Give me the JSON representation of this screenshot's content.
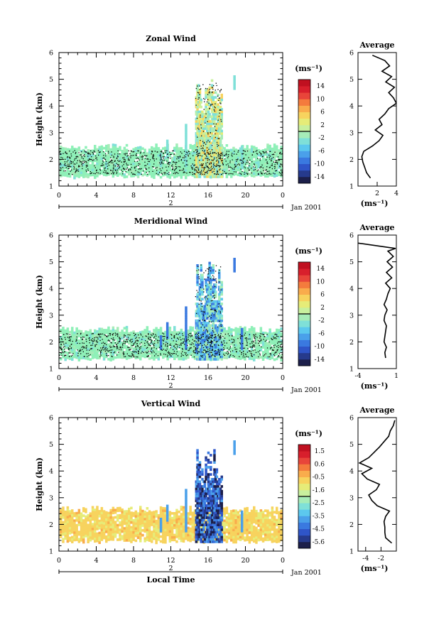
{
  "chart_data": [
    {
      "type": "heatmap",
      "title": "Zonal Wind",
      "ylabel": "Height (km)",
      "ylim": [
        1,
        6
      ],
      "yticks": [
        "1",
        "2",
        "3",
        "4",
        "5",
        "6"
      ],
      "xlim": [
        0,
        24
      ],
      "xticks": [
        "0",
        "4",
        "8",
        "12",
        "16",
        "20",
        "0"
      ],
      "date_axis": {
        "day_label": "2",
        "month_year": "Jan 2001"
      },
      "colorbar": {
        "unit": "(ms⁻¹)",
        "labels": [
          "14",
          "10",
          "6",
          "2",
          "-2",
          "-6",
          "-10",
          "-14"
        ],
        "min": -16,
        "max": 16,
        "colors": [
          "#1c1f4a",
          "#263a8c",
          "#2f55c8",
          "#3a79e0",
          "#4aa0ea",
          "#5cc8ee",
          "#7fe0d8",
          "#a6ecb8",
          "#c8f09e",
          "#e6ec78",
          "#f7d35e",
          "#f9ac4c",
          "#f47b3d",
          "#e8453a",
          "#d81f2c",
          "#c01020"
        ]
      },
      "average_profile": {
        "title": "Average",
        "xlabel": "(ms⁻¹)",
        "xticks": [
          "2",
          "4"
        ],
        "xlim": [
          0,
          4
        ],
        "heights": [
          1.3,
          1.5,
          1.7,
          1.9,
          2.1,
          2.3,
          2.5,
          2.7,
          2.9,
          3.1,
          3.3,
          3.5,
          3.7,
          3.9,
          4.1,
          4.3,
          4.5,
          4.7,
          4.9,
          5.1,
          5.3,
          5.5,
          5.7,
          5.9
        ],
        "values": [
          1.3,
          0.9,
          0.7,
          0.5,
          0.4,
          0.6,
          1.5,
          2.2,
          2.6,
          1.8,
          2.5,
          2.2,
          2.8,
          3.2,
          4.0,
          3.7,
          3.2,
          3.8,
          2.9,
          3.5,
          2.5,
          3.3,
          2.8,
          1.5
        ]
      }
    },
    {
      "type": "heatmap",
      "title": "Meridional Wind",
      "ylabel": "Height (km)",
      "ylim": [
        1,
        6
      ],
      "yticks": [
        "1",
        "2",
        "3",
        "4",
        "5",
        "6"
      ],
      "xlim": [
        0,
        24
      ],
      "xticks": [
        "0",
        "4",
        "8",
        "12",
        "16",
        "20",
        "0"
      ],
      "date_axis": {
        "day_label": "2",
        "month_year": "Jan 2001"
      },
      "colorbar": {
        "unit": "(ms⁻¹)",
        "labels": [
          "14",
          "10",
          "6",
          "2",
          "-2",
          "-6",
          "-10",
          "-14"
        ],
        "min": -16,
        "max": 16,
        "colors": [
          "#1c1f4a",
          "#263a8c",
          "#2f55c8",
          "#3a79e0",
          "#4aa0ea",
          "#5cc8ee",
          "#7fe0d8",
          "#a6ecb8",
          "#c8f09e",
          "#e6ec78",
          "#f7d35e",
          "#f9ac4c",
          "#f47b3d",
          "#e8453a",
          "#d81f2c",
          "#c01020"
        ]
      },
      "average_profile": {
        "title": "Average",
        "xlabel": "(ms⁻¹)",
        "xticks": [
          "-4",
          "1"
        ],
        "xlim": [
          -4,
          1
        ],
        "heights": [
          1.4,
          1.6,
          1.8,
          2.0,
          2.2,
          2.4,
          2.6,
          2.8,
          3.0,
          3.2,
          3.4,
          3.6,
          3.8,
          4.0,
          4.2,
          4.4,
          4.6,
          4.8,
          5.0,
          5.2,
          5.4,
          5.5,
          5.7
        ],
        "values": [
          -0.4,
          -0.5,
          -0.3,
          -0.6,
          -0.5,
          -0.4,
          -0.3,
          -0.6,
          -0.5,
          -0.2,
          -0.6,
          -0.3,
          -0.1,
          0.2,
          -0.4,
          0.4,
          -0.3,
          0.5,
          -0.2,
          0.6,
          -0.1,
          0.9,
          -4.0
        ]
      }
    },
    {
      "type": "heatmap",
      "title": "Vertical Wind",
      "ylabel": "Height (km)",
      "xlabel": "Local Time",
      "ylim": [
        1,
        6
      ],
      "yticks": [
        "1",
        "2",
        "3",
        "4",
        "5",
        "6"
      ],
      "xlim": [
        0,
        24
      ],
      "xticks": [
        "0",
        "4",
        "8",
        "12",
        "16",
        "20",
        "0"
      ],
      "date_axis": {
        "day_label": "2",
        "month_year": "Jan 2001"
      },
      "colorbar": {
        "unit": "(ms⁻¹)",
        "labels": [
          "1.5",
          "0.6",
          "-0.5",
          "-1.6",
          "-2.5",
          "-3.5",
          "-4.5",
          "-5.6"
        ],
        "min": -6.0,
        "max": 1.9,
        "colors": [
          "#1c1f4a",
          "#263a8c",
          "#2f55c8",
          "#3a79e0",
          "#4aa0ea",
          "#5cc8ee",
          "#7fe0d8",
          "#a6ecb8",
          "#c8f09e",
          "#e6ec78",
          "#f7d35e",
          "#f9ac4c",
          "#f47b3d",
          "#e8453a",
          "#d81f2c",
          "#c01020"
        ]
      },
      "average_profile": {
        "title": "Average",
        "xlabel": "(ms⁻¹)",
        "xticks": [
          "-4",
          "-2"
        ],
        "xlim": [
          -5,
          0
        ],
        "heights": [
          1.3,
          1.5,
          1.7,
          1.9,
          2.1,
          2.3,
          2.5,
          2.7,
          2.9,
          3.1,
          3.3,
          3.5,
          3.7,
          3.9,
          4.1,
          4.3,
          4.5,
          4.7,
          4.9,
          5.1,
          5.3,
          5.5,
          5.7,
          5.9
        ],
        "values": [
          -0.6,
          -1.4,
          -1.5,
          -1.5,
          -1.6,
          -1.4,
          -0.9,
          -2.5,
          -3.2,
          -3.6,
          -2.6,
          -2.2,
          -3.8,
          -4.5,
          -3.2,
          -4.8,
          -3.6,
          -2.9,
          -2.2,
          -1.6,
          -1.0,
          -0.8,
          -0.4,
          -0.2
        ]
      }
    }
  ]
}
